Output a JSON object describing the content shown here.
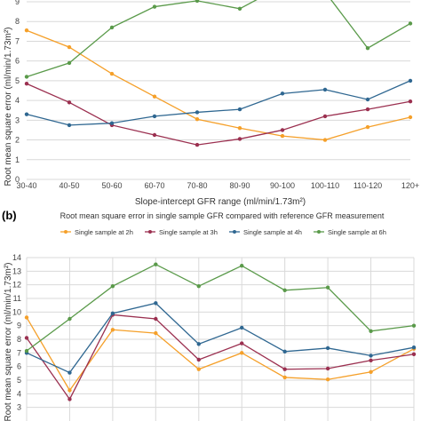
{
  "chart_data": [
    {
      "type": "line",
      "title": "",
      "xlabel": "Slope-intercept GFR range (ml/min/1.73m²)",
      "ylabel": "Root mean square error (ml/min/1.73m²)",
      "categories": [
        "30-40",
        "40-50",
        "50-60",
        "60-70",
        "70-80",
        "80-90",
        "90-100",
        "100-110",
        "110-120",
        "120+"
      ],
      "ylim": [
        0,
        9
      ],
      "yticks": [
        "0",
        "1",
        "2",
        "3",
        "4",
        "5",
        "6",
        "7",
        "8",
        "9"
      ],
      "grid": true,
      "series": [
        {
          "color": "#f5a02a",
          "values": [
            7.55,
            6.7,
            5.35,
            4.2,
            3.05,
            2.6,
            2.2,
            2.0,
            2.65,
            3.15
          ]
        },
        {
          "color": "#9b3050",
          "values": [
            4.85,
            3.9,
            2.75,
            2.25,
            1.75,
            2.05,
            2.5,
            3.2,
            3.55,
            3.95
          ]
        },
        {
          "color": "#2f6791",
          "values": [
            3.3,
            2.75,
            2.85,
            3.2,
            3.4,
            3.55,
            4.35,
            4.55,
            4.05,
            5.0
          ]
        },
        {
          "color": "#5a9a4a",
          "values": [
            5.2,
            5.9,
            7.7,
            8.75,
            9.05,
            8.65,
            9.8,
            9.5,
            6.65,
            7.9
          ]
        }
      ]
    },
    {
      "type": "line",
      "title": "Root mean square error in single sample GFR compared with reference GFR measurement",
      "ylabel": "Root mean square error (ml/min/1.73m²)",
      "ylim": [
        2,
        14
      ],
      "yticks": [
        "3",
        "4",
        "5",
        "6",
        "7",
        "8",
        "9",
        "10",
        "11",
        "12",
        "13",
        "14"
      ],
      "grid": true,
      "legend": "top",
      "series": [
        {
          "name": "Single sample at 2h",
          "color": "#f5a02a",
          "values": [
            9.6,
            4.25,
            8.7,
            8.45,
            5.8,
            7.0,
            5.2,
            5.05,
            5.6,
            7.3
          ]
        },
        {
          "name": "Single sample at 3h",
          "color": "#9b3050",
          "values": [
            8.1,
            3.6,
            9.8,
            9.5,
            6.5,
            7.7,
            5.8,
            5.85,
            6.45,
            6.9
          ]
        },
        {
          "name": "Single sample at 4h",
          "color": "#2f6791",
          "values": [
            7.0,
            5.55,
            9.9,
            10.65,
            7.65,
            8.85,
            7.1,
            7.35,
            6.8,
            7.4
          ]
        },
        {
          "name": "Single sample at 6h",
          "color": "#5a9a4a",
          "values": [
            7.15,
            9.5,
            11.9,
            13.5,
            11.9,
            13.4,
            11.6,
            11.8,
            8.6,
            9.0
          ]
        }
      ]
    }
  ],
  "panel_b_label": "(b)"
}
